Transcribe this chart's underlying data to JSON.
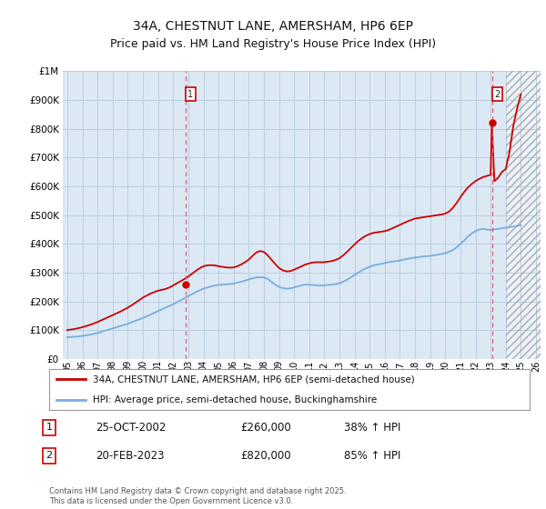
{
  "title": "34A, CHESTNUT LANE, AMERSHAM, HP6 6EP",
  "subtitle": "Price paid vs. HM Land Registry's House Price Index (HPI)",
  "ylim": [
    0,
    1000000
  ],
  "xlim_start": 1994.7,
  "xlim_end": 2026.3,
  "background_color": "#ffffff",
  "plot_bg_color": "#dce9f5",
  "grid_color": "#b8cfe0",
  "red_color": "#cc0000",
  "blue_color": "#7aadde",
  "dashed_color": "#e06070",
  "hatch_start": 2024.0,
  "marker1_x": 2002.82,
  "marker1_y": 260000,
  "marker2_x": 2023.12,
  "marker2_y": 820000,
  "legend_line1": "34A, CHESTNUT LANE, AMERSHAM, HP6 6EP (semi-detached house)",
  "legend_line2": "HPI: Average price, semi-detached house, Buckinghamshire",
  "footer": "Contains HM Land Registry data © Crown copyright and database right 2025.\nThis data is licensed under the Open Government Licence v3.0.",
  "hpi_years": [
    1995.0,
    1995.25,
    1995.5,
    1995.75,
    1996.0,
    1996.25,
    1996.5,
    1996.75,
    1997.0,
    1997.25,
    1997.5,
    1997.75,
    1998.0,
    1998.25,
    1998.5,
    1998.75,
    1999.0,
    1999.25,
    1999.5,
    1999.75,
    2000.0,
    2000.25,
    2000.5,
    2000.75,
    2001.0,
    2001.25,
    2001.5,
    2001.75,
    2002.0,
    2002.25,
    2002.5,
    2002.75,
    2003.0,
    2003.25,
    2003.5,
    2003.75,
    2004.0,
    2004.25,
    2004.5,
    2004.75,
    2005.0,
    2005.25,
    2005.5,
    2005.75,
    2006.0,
    2006.25,
    2006.5,
    2006.75,
    2007.0,
    2007.25,
    2007.5,
    2007.75,
    2008.0,
    2008.25,
    2008.5,
    2008.75,
    2009.0,
    2009.25,
    2009.5,
    2009.75,
    2010.0,
    2010.25,
    2010.5,
    2010.75,
    2011.0,
    2011.25,
    2011.5,
    2011.75,
    2012.0,
    2012.25,
    2012.5,
    2012.75,
    2013.0,
    2013.25,
    2013.5,
    2013.75,
    2014.0,
    2014.25,
    2014.5,
    2014.75,
    2015.0,
    2015.25,
    2015.5,
    2015.75,
    2016.0,
    2016.25,
    2016.5,
    2016.75,
    2017.0,
    2017.25,
    2017.5,
    2017.75,
    2018.0,
    2018.25,
    2018.5,
    2018.75,
    2019.0,
    2019.25,
    2019.5,
    2019.75,
    2020.0,
    2020.25,
    2020.5,
    2020.75,
    2021.0,
    2021.25,
    2021.5,
    2021.75,
    2022.0,
    2022.25,
    2022.5,
    2022.75,
    2023.0,
    2023.25,
    2023.5,
    2023.75,
    2024.0,
    2024.25,
    2024.5,
    2024.75,
    2025.0
  ],
  "hpi_values": [
    75000,
    76000,
    77000,
    78000,
    80000,
    82000,
    84000,
    87000,
    90000,
    94000,
    98000,
    102000,
    106000,
    110000,
    114000,
    118000,
    122000,
    127000,
    132000,
    137000,
    142000,
    148000,
    154000,
    160000,
    166000,
    172000,
    178000,
    184000,
    190000,
    197000,
    204000,
    211000,
    218000,
    225000,
    232000,
    238000,
    244000,
    248000,
    252000,
    255000,
    257000,
    258000,
    259000,
    260000,
    262000,
    265000,
    268000,
    272000,
    276000,
    280000,
    283000,
    284000,
    283000,
    278000,
    268000,
    258000,
    250000,
    246000,
    244000,
    245000,
    248000,
    252000,
    256000,
    258000,
    258000,
    257000,
    255000,
    255000,
    256000,
    257000,
    258000,
    260000,
    263000,
    268000,
    275000,
    283000,
    292000,
    300000,
    308000,
    315000,
    320000,
    325000,
    328000,
    330000,
    333000,
    336000,
    338000,
    340000,
    342000,
    345000,
    348000,
    350000,
    352000,
    354000,
    356000,
    357000,
    358000,
    360000,
    362000,
    365000,
    368000,
    372000,
    378000,
    388000,
    400000,
    412000,
    425000,
    436000,
    444000,
    450000,
    452000,
    450000,
    448000,
    450000,
    452000,
    454000,
    456000,
    458000,
    460000,
    462000,
    465000
  ],
  "red_years": [
    1995.0,
    1995.25,
    1995.5,
    1995.75,
    1996.0,
    1996.25,
    1996.5,
    1996.75,
    1997.0,
    1997.25,
    1997.5,
    1997.75,
    1998.0,
    1998.25,
    1998.5,
    1998.75,
    1999.0,
    1999.25,
    1999.5,
    1999.75,
    2000.0,
    2000.25,
    2000.5,
    2000.75,
    2001.0,
    2001.25,
    2001.5,
    2001.75,
    2002.0,
    2002.25,
    2002.5,
    2002.75,
    2003.0,
    2003.25,
    2003.5,
    2003.75,
    2004.0,
    2004.25,
    2004.5,
    2004.75,
    2005.0,
    2005.25,
    2005.5,
    2005.75,
    2006.0,
    2006.25,
    2006.5,
    2006.75,
    2007.0,
    2007.25,
    2007.5,
    2007.75,
    2008.0,
    2008.25,
    2008.5,
    2008.75,
    2009.0,
    2009.25,
    2009.5,
    2009.75,
    2010.0,
    2010.25,
    2010.5,
    2010.75,
    2011.0,
    2011.25,
    2011.5,
    2011.75,
    2012.0,
    2012.25,
    2012.5,
    2012.75,
    2013.0,
    2013.25,
    2013.5,
    2013.75,
    2014.0,
    2014.25,
    2014.5,
    2014.75,
    2015.0,
    2015.25,
    2015.5,
    2015.75,
    2016.0,
    2016.25,
    2016.5,
    2016.75,
    2017.0,
    2017.25,
    2017.5,
    2017.75,
    2018.0,
    2018.25,
    2018.5,
    2018.75,
    2019.0,
    2019.25,
    2019.5,
    2019.75,
    2020.0,
    2020.25,
    2020.5,
    2020.75,
    2021.0,
    2021.25,
    2021.5,
    2021.75,
    2022.0,
    2022.25,
    2022.5,
    2022.75,
    2023.0,
    2023.08,
    2023.25,
    2023.5,
    2023.75,
    2024.0,
    2024.25,
    2024.5,
    2024.75,
    2025.0
  ],
  "red_values": [
    100000,
    102000,
    104000,
    107000,
    110000,
    114000,
    118000,
    123000,
    128000,
    134000,
    140000,
    146000,
    152000,
    158000,
    164000,
    171000,
    178000,
    186000,
    195000,
    204000,
    213000,
    220000,
    227000,
    232000,
    237000,
    240000,
    243000,
    248000,
    255000,
    263000,
    270000,
    278000,
    286000,
    296000,
    306000,
    315000,
    322000,
    325000,
    326000,
    325000,
    322000,
    320000,
    318000,
    317000,
    318000,
    322000,
    328000,
    336000,
    345000,
    358000,
    370000,
    375000,
    372000,
    360000,
    345000,
    330000,
    316000,
    308000,
    304000,
    305000,
    310000,
    316000,
    322000,
    328000,
    332000,
    335000,
    336000,
    336000,
    336000,
    338000,
    340000,
    344000,
    350000,
    360000,
    372000,
    385000,
    398000,
    410000,
    420000,
    428000,
    434000,
    438000,
    440000,
    442000,
    444000,
    448000,
    454000,
    460000,
    466000,
    472000,
    478000,
    483000,
    488000,
    490000,
    492000,
    494000,
    496000,
    498000,
    500000,
    502000,
    505000,
    512000,
    525000,
    542000,
    562000,
    580000,
    596000,
    608000,
    618000,
    626000,
    632000,
    636000,
    640000,
    820000,
    618000,
    630000,
    650000,
    660000,
    720000,
    810000,
    870000,
    920000
  ]
}
